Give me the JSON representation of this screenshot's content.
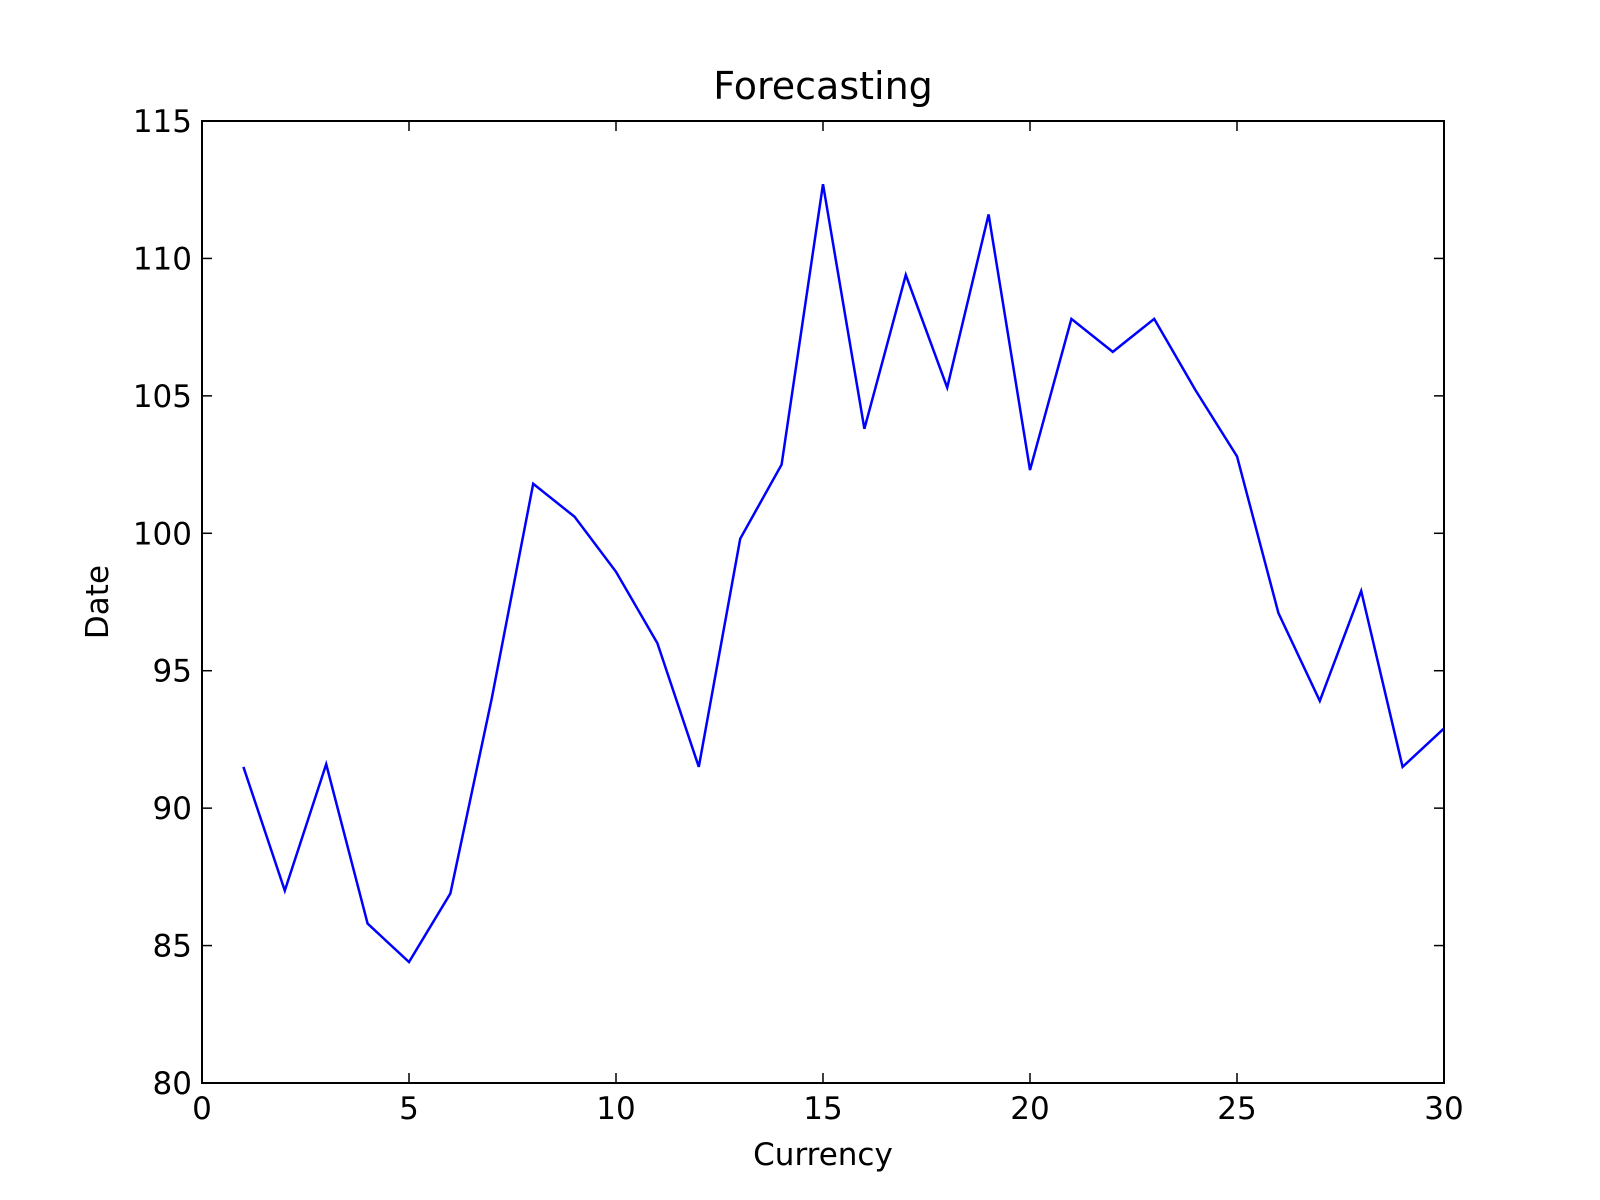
{
  "chart_data": {
    "type": "line",
    "title": "Forecasting",
    "xlabel": "Currency",
    "ylabel": "Date",
    "xlim": [
      0,
      30
    ],
    "ylim": [
      80,
      115
    ],
    "xticks": [
      0,
      5,
      10,
      15,
      20,
      25,
      30
    ],
    "yticks": [
      80,
      85,
      90,
      95,
      100,
      105,
      110,
      115
    ],
    "grid": false,
    "legend": "none",
    "series": [
      {
        "color": "#0000ff",
        "x": [
          1,
          2,
          3,
          4,
          5,
          6,
          7,
          8,
          9,
          10,
          11,
          12,
          13,
          14,
          15,
          16,
          17,
          18,
          19,
          20,
          21,
          22,
          23,
          24,
          25,
          26,
          27,
          28,
          29,
          30
        ],
        "y": [
          91.5,
          87.0,
          91.6,
          85.8,
          84.4,
          86.9,
          94.0,
          101.8,
          100.6,
          98.6,
          96.0,
          91.5,
          99.8,
          102.5,
          112.7,
          103.8,
          109.4,
          105.3,
          111.6,
          102.3,
          107.8,
          106.6,
          107.8,
          105.2,
          102.8,
          97.1,
          93.9,
          97.9,
          91.5,
          92.9
        ]
      }
    ]
  },
  "colors": {
    "line": "#0000ff",
    "axes": "#000000",
    "background": "#ffffff"
  }
}
